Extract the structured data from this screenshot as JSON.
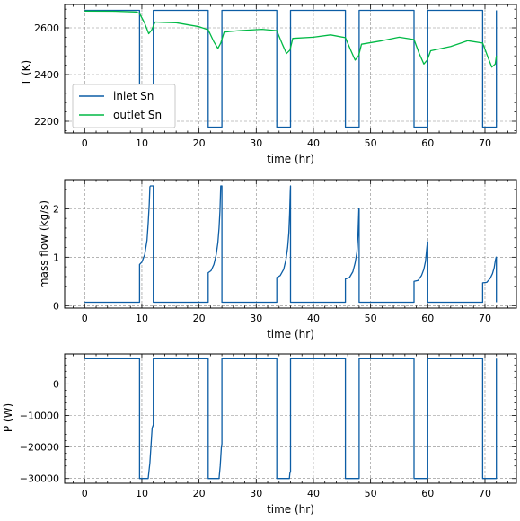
{
  "colors": {
    "inlet": "#0C5DA5",
    "outlet": "#00B945"
  },
  "chart_data": [
    {
      "type": "line",
      "xlabel": "time (hr)",
      "ylabel": "T (K)",
      "xlim": [
        -3.5,
        75.5
      ],
      "ylim": [
        2150,
        2700
      ],
      "xticks": [
        0,
        10,
        20,
        30,
        40,
        50,
        60,
        70
      ],
      "yticks": [
        2200,
        2400,
        2600
      ],
      "legend": "lower-left",
      "grid": true,
      "series": [
        {
          "name": "inlet Sn",
          "color_key": "inlet",
          "x": [
            0,
            9.6,
            9.6,
            12.0,
            12.0,
            21.6,
            21.6,
            24.0,
            24.0,
            33.6,
            33.6,
            36.0,
            36.0,
            45.6,
            45.6,
            48.0,
            48.0,
            57.6,
            57.6,
            60.0,
            60.0,
            69.6,
            69.6,
            72.0,
            72.0
          ],
          "y": [
            2675,
            2675,
            2175,
            2175,
            2675,
            2675,
            2175,
            2175,
            2675,
            2675,
            2175,
            2175,
            2675,
            2675,
            2175,
            2175,
            2675,
            2675,
            2175,
            2175,
            2675,
            2675,
            2175,
            2175,
            2675
          ]
        },
        {
          "name": "outlet Sn",
          "color_key": "outlet",
          "x": [
            0,
            5,
            9.0,
            9.6,
            10.5,
            11.2,
            11.7,
            12.3,
            13.5,
            16,
            20,
            21.6,
            22.6,
            23.3,
            23.8,
            24.4,
            27,
            31,
            33.6,
            34.6,
            35.3,
            35.9,
            36.4,
            40,
            43,
            45.6,
            46.6,
            47.3,
            47.9,
            48.4,
            52,
            55,
            57.6,
            58.5,
            59.3,
            59.9,
            60.5,
            64,
            67,
            69.6,
            70.5,
            71.2,
            71.8,
            72.0
          ],
          "y": [
            2672,
            2671,
            2668,
            2662,
            2620,
            2575,
            2590,
            2625,
            2624,
            2622,
            2605,
            2592,
            2540,
            2512,
            2535,
            2582,
            2588,
            2594,
            2588,
            2528,
            2490,
            2505,
            2555,
            2560,
            2570,
            2558,
            2500,
            2462,
            2480,
            2530,
            2545,
            2560,
            2550,
            2490,
            2445,
            2462,
            2502,
            2520,
            2545,
            2535,
            2475,
            2432,
            2445,
            2480
          ]
        }
      ]
    },
    {
      "type": "line",
      "xlabel": "time (hr)",
      "ylabel": "mass flow (kg/s)",
      "xlim": [
        -3.5,
        75.5
      ],
      "ylim": [
        -0.05,
        2.6
      ],
      "xticks": [
        0,
        10,
        20,
        30,
        40,
        50,
        60,
        70
      ],
      "yticks": [
        0,
        1,
        2
      ],
      "grid": true,
      "series": [
        {
          "color_key": "inlet",
          "x": [
            0,
            9.6,
            9.6,
            10.0,
            10.5,
            10.9,
            11.1,
            11.3,
            11.4,
            11.5,
            12.0,
            12.0,
            21.6,
            21.6,
            22.1,
            22.6,
            23.0,
            23.3,
            23.5,
            23.65,
            23.75,
            23.8,
            24.0,
            24.0,
            33.6,
            33.6,
            34.2,
            34.8,
            35.2,
            35.5,
            35.7,
            35.85,
            35.95,
            36.0,
            36.0,
            45.6,
            45.6,
            46.3,
            46.9,
            47.3,
            47.6,
            47.8,
            47.95,
            48.0,
            48.0,
            57.6,
            57.6,
            58.3,
            58.9,
            59.3,
            59.6,
            59.8,
            59.95,
            60.0,
            60.0,
            69.6,
            69.6,
            70.3,
            70.9,
            71.3,
            71.6,
            71.8,
            71.95,
            72.0,
            72.0
          ],
          "y": [
            0.07,
            0.07,
            0.85,
            0.9,
            1.05,
            1.35,
            1.7,
            2.1,
            2.45,
            2.47,
            2.47,
            0.07,
            0.07,
            0.68,
            0.72,
            0.85,
            1.05,
            1.3,
            1.6,
            1.95,
            2.3,
            2.47,
            2.47,
            0.07,
            0.07,
            0.58,
            0.62,
            0.75,
            0.95,
            1.2,
            1.5,
            1.9,
            2.35,
            2.47,
            0.07,
            0.07,
            0.55,
            0.58,
            0.7,
            0.88,
            1.1,
            1.45,
            2.0,
            2.0,
            0.07,
            0.07,
            0.5,
            0.52,
            0.62,
            0.75,
            0.92,
            1.15,
            1.32,
            1.32,
            0.07,
            0.07,
            0.47,
            0.48,
            0.56,
            0.66,
            0.78,
            0.92,
            1.0,
            1.0,
            0.07
          ]
        }
      ]
    },
    {
      "type": "line",
      "xlabel": "time (hr)",
      "ylabel": "P (W)",
      "xlim": [
        -3.5,
        75.5
      ],
      "ylim": [
        -31500,
        9500
      ],
      "xticks": [
        0,
        10,
        20,
        30,
        40,
        50,
        60,
        70
      ],
      "yticks": [
        -30000,
        -20000,
        -10000,
        0
      ],
      "grid": true,
      "series": [
        {
          "color_key": "inlet",
          "x": [
            0,
            9.6,
            9.6,
            11.1,
            11.4,
            11.8,
            12.0,
            12.0,
            21.6,
            21.6,
            23.5,
            23.7,
            23.9,
            24.0,
            24.0,
            33.6,
            33.6,
            35.8,
            35.9,
            36.0,
            36.0,
            45.6,
            45.6,
            48.0,
            48.0,
            57.6,
            57.6,
            60.0,
            60.0,
            69.6,
            69.6,
            72.0,
            72.0
          ],
          "y": [
            8000,
            8000,
            -30000,
            -30000,
            -25000,
            -14000,
            -13000,
            8000,
            8000,
            -30000,
            -30000,
            -26000,
            -20000,
            -19000,
            8000,
            8000,
            -30000,
            -30000,
            -28000,
            -28000,
            8000,
            8000,
            -30000,
            -30000,
            8000,
            8000,
            -30000,
            -30000,
            8000,
            8000,
            -30000,
            -30000,
            8000
          ]
        }
      ]
    }
  ]
}
